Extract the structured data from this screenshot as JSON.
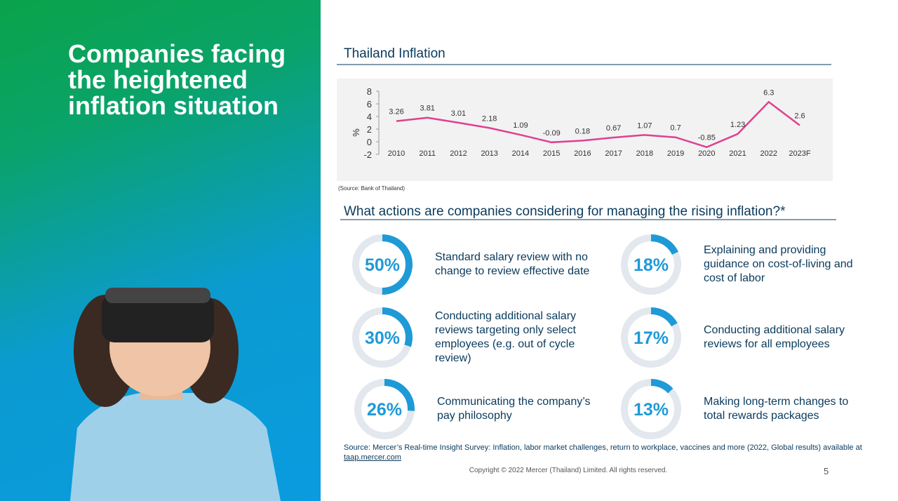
{
  "headline": "Companies facing the heightened inflation situation",
  "chart_data": [
    {
      "type": "line",
      "title": "Thailand Inflation",
      "y_label": "%",
      "categories": [
        "2010",
        "2011",
        "2012",
        "2013",
        "2014",
        "2015",
        "2016",
        "2017",
        "2018",
        "2019",
        "2020",
        "2021",
        "2022",
        "2023F"
      ],
      "values": [
        3.26,
        3.81,
        3.01,
        2.18,
        1.09,
        -0.09,
        0.18,
        0.67,
        1.07,
        0.7,
        -0.85,
        1.23,
        6.3,
        2.6
      ],
      "color": "#e0408f",
      "ylim": [
        -2,
        8
      ],
      "yticks": [
        -2,
        0,
        2,
        4,
        6,
        8
      ],
      "source": "(Source: Bank of Thailand)"
    },
    {
      "type": "donut",
      "title": "What actions are companies considering for managing the rising inflation?*",
      "categories": [
        "Standard salary review with no change to review effective date",
        "Conducting additional salary reviews targeting only select employees (e.g. out of cycle review)",
        "Communicating the company’s pay philosophy",
        "Explaining and providing guidance on cost-of-living and cost of labor",
        "Conducting additional salary reviews for all employees",
        "Making long-term changes to total rewards packages"
      ],
      "values": [
        50,
        30,
        26,
        18,
        17,
        13
      ],
      "value_labels": [
        "50%",
        "30%",
        "26%",
        "18%",
        "17%",
        "13%"
      ],
      "color": "#1e9ad6",
      "track_color": "#e3e7ee"
    }
  ],
  "footer": {
    "source": "Source: Mercer’s Real-time Insight Survey: Inflation, labor market challenges, return to workplace, vaccines and more (2022, Global results) available at",
    "link": "taap.mercer.com",
    "copyright": "Copyright © 2022 Mercer (Thailand) Limited. All rights reserved.",
    "page": "5"
  }
}
